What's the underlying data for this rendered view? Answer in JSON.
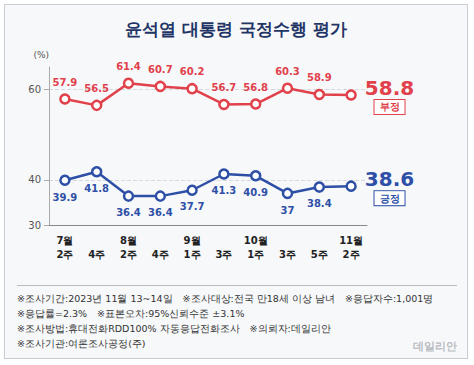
{
  "chart_data": {
    "type": "line",
    "title": "윤석열 대통령 국정수행 평가",
    "y_label": "(%)",
    "categories": [
      "7월 2주",
      "4주",
      "8월 2주",
      "4주",
      "9월 1주",
      "3주",
      "10월 1주",
      "3주",
      "5주",
      "11월 2주"
    ],
    "series": [
      {
        "name": "부정",
        "color": "#e0414b",
        "values": [
          57.9,
          56.5,
          61.4,
          60.7,
          60.2,
          56.7,
          56.8,
          60.3,
          58.9,
          58.8
        ]
      },
      {
        "name": "긍정",
        "color": "#2e4fa6",
        "values": [
          39.9,
          41.8,
          36.4,
          36.4,
          37.7,
          41.3,
          40.9,
          37.0,
          38.4,
          38.6
        ]
      }
    ],
    "ylim": [
      30,
      65
    ],
    "yticks": [
      30,
      40,
      60
    ],
    "grid": true,
    "data_labels": true,
    "marker": "circle",
    "annotations": [
      "※조사기간:2023년 11월 13~14일",
      "※조사대상:전국 만18세 이상 남녀",
      "※응답자수:1,001명",
      "※응답률=2.3%",
      "※표본오차:95%신뢰수준 ±3.1%",
      "※조사방법:휴대전화RDD100% 자동응답전화조사",
      "※의뢰자:데일리안",
      "※조사기관:여론조사공정(주)"
    ],
    "source": "데일리안"
  }
}
